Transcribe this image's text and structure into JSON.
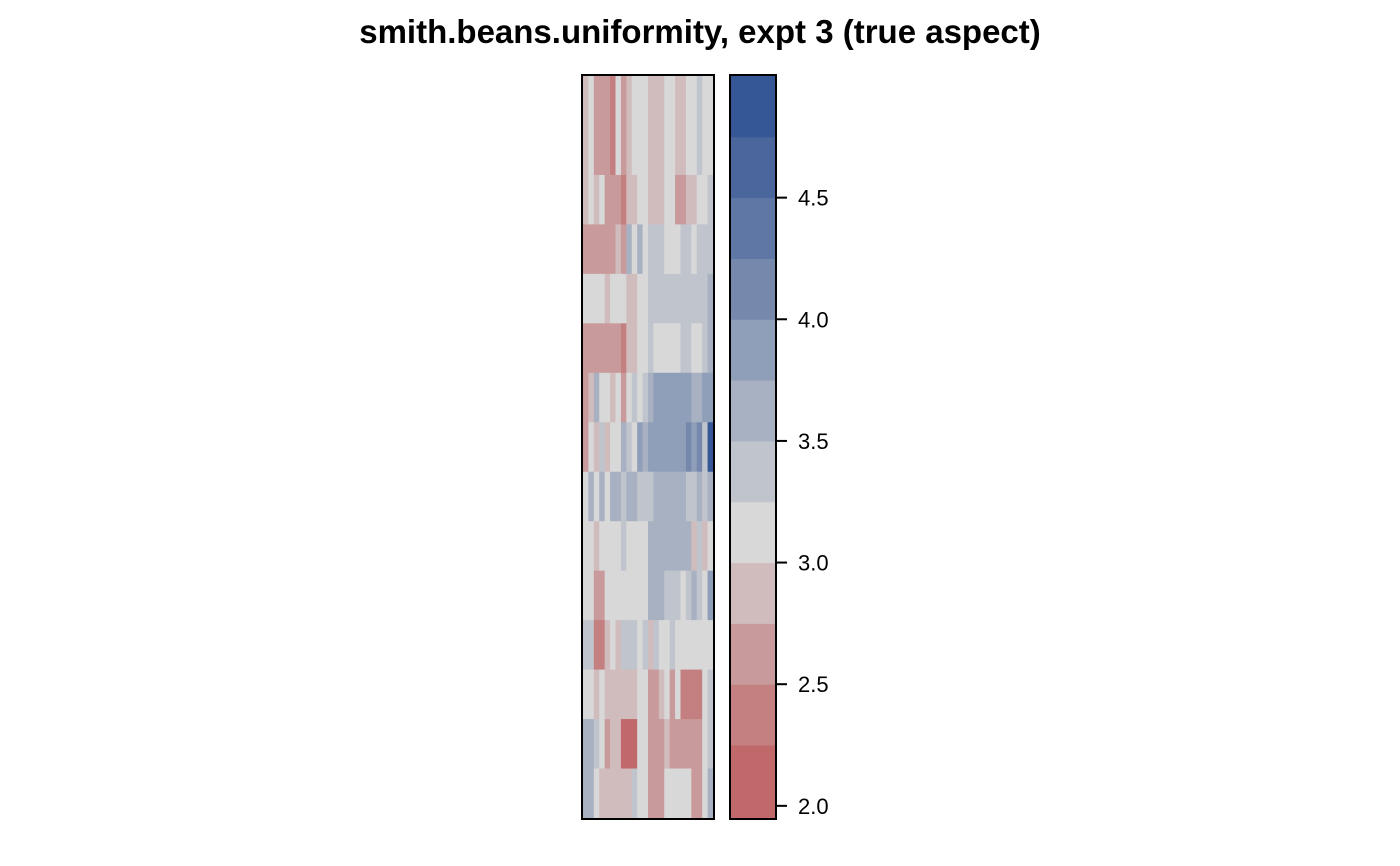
{
  "chart_data": {
    "type": "heatmap",
    "title": "smith.beans.uniformity, expt 3 (true aspect)",
    "xlabel": "",
    "ylabel": "",
    "n_cols": 24,
    "n_rows": 15,
    "colorbar": {
      "breaks": [
        1.95,
        2.25,
        2.5,
        2.75,
        3.0,
        3.25,
        3.5,
        3.75,
        4.0,
        4.25,
        4.5,
        4.75,
        5.0
      ],
      "colors": [
        "#c0686a",
        "#c47f80",
        "#c99a9b",
        "#d1bcbd",
        "#d8d8d8",
        "#c0c4cc",
        "#a8b1c2",
        "#8f9eb9",
        "#7689ad",
        "#5f77a5",
        "#4b669d",
        "#355795"
      ],
      "ticks": [
        2.0,
        2.5,
        3.0,
        3.5,
        4.0,
        4.5
      ],
      "tick_labels": [
        "2.0",
        "2.5",
        "3.0",
        "3.5",
        "4.0",
        "4.5"
      ]
    },
    "values": [
      [
        2.9,
        3.1,
        2.6,
        2.6,
        2.7,
        2.4,
        3.0,
        2.5,
        2.9,
        3.1,
        3.2,
        3.1,
        2.9,
        2.9,
        2.8,
        3.0,
        3.0,
        2.9,
        2.8,
        3.2,
        3.1,
        3.3,
        3.2,
        3.0
      ],
      [
        2.9,
        3.1,
        2.6,
        2.6,
        2.7,
        2.4,
        3.0,
        2.5,
        2.9,
        3.1,
        3.2,
        3.1,
        2.9,
        2.9,
        2.8,
        3.0,
        3.0,
        2.9,
        2.8,
        3.2,
        3.1,
        3.3,
        3.2,
        3.0
      ],
      [
        2.8,
        3.0,
        2.9,
        3.1,
        2.5,
        2.6,
        2.6,
        2.3,
        2.8,
        2.8,
        3.0,
        3.0,
        2.8,
        2.8,
        2.9,
        3.0,
        3.1,
        2.6,
        2.5,
        2.9,
        2.9,
        3.2,
        3.0,
        3.3
      ],
      [
        2.7,
        2.7,
        2.7,
        2.7,
        2.7,
        2.7,
        2.8,
        2.7,
        3.5,
        3.0,
        3.6,
        3.2,
        3.3,
        3.3,
        3.3,
        3.0,
        3.0,
        3.0,
        3.3,
        3.3,
        3.0,
        3.4,
        3.3,
        3.3
      ],
      [
        3.0,
        3.0,
        3.0,
        3.0,
        2.8,
        3.0,
        3.1,
        3.0,
        2.9,
        2.8,
        3.0,
        3.0,
        3.3,
        3.3,
        3.3,
        3.3,
        3.3,
        3.3,
        3.3,
        3.3,
        3.3,
        3.3,
        3.3,
        3.6
      ],
      [
        2.5,
        2.7,
        2.7,
        2.7,
        2.7,
        2.7,
        2.7,
        2.4,
        2.8,
        2.9,
        3.0,
        3.0,
        3.3,
        3.2,
        3.2,
        3.2,
        3.2,
        3.2,
        3.3,
        3.3,
        3.0,
        3.0,
        3.3,
        3.6
      ],
      [
        2.6,
        2.8,
        3.7,
        3.2,
        3.0,
        2.8,
        3.0,
        2.7,
        3.0,
        3.3,
        3.1,
        3.3,
        3.6,
        3.8,
        3.8,
        3.8,
        3.8,
        3.8,
        3.8,
        3.8,
        3.6,
        3.6,
        3.9,
        3.9
      ],
      [
        2.5,
        3.0,
        2.9,
        3.3,
        2.8,
        3.1,
        3.1,
        3.6,
        3.4,
        3.1,
        3.8,
        3.7,
        3.8,
        3.8,
        3.8,
        3.8,
        3.8,
        3.8,
        3.8,
        4.1,
        3.8,
        4.2,
        3.3,
        4.8
      ],
      [
        3.0,
        3.5,
        3.2,
        3.7,
        3.2,
        3.5,
        3.5,
        3.4,
        3.5,
        3.6,
        3.4,
        3.3,
        3.3,
        3.6,
        3.6,
        3.6,
        3.6,
        3.6,
        3.6,
        3.3,
        3.3,
        3.6,
        3.3,
        3.6
      ],
      [
        3.0,
        3.1,
        2.8,
        3.0,
        3.1,
        3.0,
        3.2,
        3.3,
        3.2,
        3.0,
        3.0,
        3.1,
        3.5,
        3.5,
        3.5,
        3.5,
        3.5,
        3.5,
        3.5,
        3.5,
        2.8,
        3.3,
        2.8,
        3.2
      ],
      [
        3.2,
        3.2,
        2.7,
        2.7,
        3.0,
        3.0,
        3.0,
        3.0,
        3.0,
        3.0,
        3.0,
        3.0,
        3.7,
        3.7,
        3.7,
        3.3,
        3.3,
        3.3,
        3.0,
        3.3,
        3.6,
        3.3,
        3.0,
        3.9
      ],
      [
        3.4,
        3.3,
        2.4,
        2.4,
        2.8,
        3.2,
        2.9,
        3.4,
        3.3,
        3.3,
        3.0,
        3.3,
        2.9,
        3.3,
        3.0,
        3.0,
        3.3,
        3.0,
        3.0,
        3.0,
        3.0,
        3.0,
        3.0,
        3.0
      ],
      [
        3.2,
        3.2,
        2.9,
        3.1,
        2.8,
        2.8,
        2.8,
        2.8,
        2.8,
        2.8,
        3.0,
        3.0,
        2.7,
        2.7,
        2.8,
        3.0,
        2.6,
        3.0,
        2.3,
        2.3,
        2.3,
        2.3,
        3.0,
        3.3
      ],
      [
        3.5,
        3.5,
        3.3,
        3.0,
        2.6,
        2.9,
        2.8,
        2.2,
        2.2,
        2.2,
        3.0,
        3.0,
        2.7,
        2.7,
        2.7,
        2.9,
        2.5,
        2.5,
        2.6,
        2.6,
        2.5,
        2.5,
        3.2,
        3.3
      ],
      [
        3.6,
        3.6,
        3.0,
        2.8,
        2.8,
        2.8,
        2.8,
        2.8,
        2.8,
        3.4,
        3.1,
        3.1,
        2.7,
        2.7,
        2.7,
        3.0,
        3.0,
        3.0,
        3.0,
        3.0,
        2.7,
        2.5,
        3.0,
        3.5
      ]
    ]
  }
}
